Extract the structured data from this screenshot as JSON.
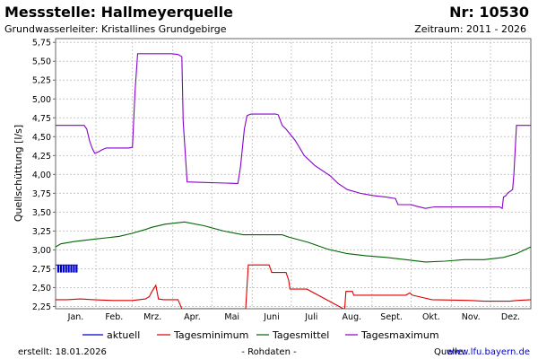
{
  "header": {
    "title": "Messstelle: Hallmeyerquelle",
    "number": "Nr: 10530",
    "subtitle": "Grundwasserleiter: Kristallines Grundgebirge",
    "period": "Zeitraum: 2011 - 2026"
  },
  "footer": {
    "created": "erstellt:  18.01.2026",
    "note": "- Rohdaten -",
    "source_label": "Quelle:",
    "source_link": "www.lfu.bayern.de"
  },
  "colors": {
    "aktuell": "#0000cc",
    "minimum": "#dd0000",
    "mittel": "#006600",
    "maximum": "#8800cc",
    "grid": "#c8c8c8"
  },
  "chart_data": {
    "type": "line",
    "title": "Messstelle: Hallmeyerquelle",
    "ylabel": "Quellschüttung [l/s]",
    "xlabel": "",
    "ylim": [
      2.22,
      5.8
    ],
    "yticks": [
      "5,75",
      "5,50",
      "5,25",
      "5,00",
      "4,75",
      "4,50",
      "4,25",
      "4,00",
      "3,75",
      "3,50",
      "3,25",
      "3,00",
      "2,75",
      "2,50",
      "2,25"
    ],
    "ytick_values": [
      5.75,
      5.5,
      5.25,
      5.0,
      4.75,
      4.5,
      4.25,
      4.0,
      3.75,
      3.5,
      3.25,
      3.0,
      2.75,
      2.5,
      2.25
    ],
    "xlim": [
      1,
      366
    ],
    "month_labels": [
      "Jan.",
      "Feb.",
      "Mrz.",
      "Apr.",
      "Mai",
      "Juni",
      "Juli",
      "Aug.",
      "Sept.",
      "Okt.",
      "Nov.",
      "Dez."
    ],
    "grid": true,
    "legend_position": "bottom",
    "series": [
      {
        "name": "aktuell",
        "style": "bar",
        "x": [
          3,
          5,
          7,
          9,
          11,
          13,
          15,
          17
        ],
        "values": [
          2.8,
          2.8,
          2.8,
          2.8,
          2.8,
          2.8,
          2.8,
          2.8
        ]
      },
      {
        "name": "Tagesminimum",
        "x": [
          1,
          10,
          20,
          30,
          45,
          60,
          65,
          70,
          73,
          75,
          78,
          80,
          84,
          95,
          98,
          147,
          149,
          150,
          165,
          167,
          178,
          180,
          181,
          194,
          222,
          223,
          224,
          229,
          230,
          260,
          270,
          273,
          275,
          280,
          290,
          320,
          330,
          350,
          355,
          366
        ],
        "values": [
          2.34,
          2.34,
          2.35,
          2.34,
          2.33,
          2.33,
          2.34,
          2.35,
          2.38,
          2.45,
          2.53,
          2.35,
          2.34,
          2.34,
          2.22,
          2.22,
          2.8,
          2.8,
          2.8,
          2.7,
          2.7,
          2.6,
          2.48,
          2.48,
          2.22,
          2.22,
          2.45,
          2.45,
          2.4,
          2.4,
          2.4,
          2.43,
          2.4,
          2.38,
          2.34,
          2.33,
          2.32,
          2.32,
          2.33,
          2.34
        ]
      },
      {
        "name": "Tagesmittel",
        "x": [
          1,
          5,
          15,
          30,
          40,
          50,
          60,
          70,
          75,
          85,
          100,
          115,
          130,
          145,
          165,
          175,
          180,
          195,
          210,
          225,
          240,
          255,
          270,
          285,
          300,
          315,
          330,
          345,
          355,
          366
        ],
        "values": [
          3.04,
          3.08,
          3.11,
          3.14,
          3.16,
          3.18,
          3.22,
          3.27,
          3.3,
          3.34,
          3.37,
          3.32,
          3.25,
          3.2,
          3.2,
          3.2,
          3.17,
          3.1,
          3.01,
          2.95,
          2.92,
          2.9,
          2.87,
          2.84,
          2.85,
          2.87,
          2.87,
          2.9,
          2.95,
          3.04
        ]
      },
      {
        "name": "Tagesmaximum",
        "x": [
          1,
          20,
          23,
          25,
          27,
          29,
          31,
          34,
          37,
          40,
          57,
          60,
          62,
          64,
          70,
          85,
          90,
          95,
          98,
          99,
          102,
          140,
          141,
          143,
          146,
          148,
          151,
          158,
          170,
          172,
          175,
          178,
          185,
          192,
          200,
          212,
          218,
          225,
          235,
          245,
          255,
          262,
          264,
          274,
          278,
          285,
          292,
          300,
          330,
          342,
          344,
          345,
          347,
          348,
          352,
          353,
          355,
          366
        ],
        "values": [
          4.65,
          4.65,
          4.65,
          4.6,
          4.45,
          4.35,
          4.28,
          4.3,
          4.33,
          4.35,
          4.35,
          4.36,
          5.1,
          5.6,
          5.6,
          5.6,
          5.6,
          5.59,
          5.56,
          4.7,
          3.9,
          3.88,
          3.88,
          4.1,
          4.6,
          4.78,
          4.8,
          4.8,
          4.8,
          4.79,
          4.65,
          4.6,
          4.45,
          4.25,
          4.12,
          3.98,
          3.88,
          3.8,
          3.75,
          3.72,
          3.7,
          3.68,
          3.6,
          3.6,
          3.58,
          3.55,
          3.57,
          3.57,
          3.57,
          3.57,
          3.55,
          3.7,
          3.72,
          3.75,
          3.8,
          4.0,
          4.65,
          4.65
        ]
      }
    ]
  }
}
